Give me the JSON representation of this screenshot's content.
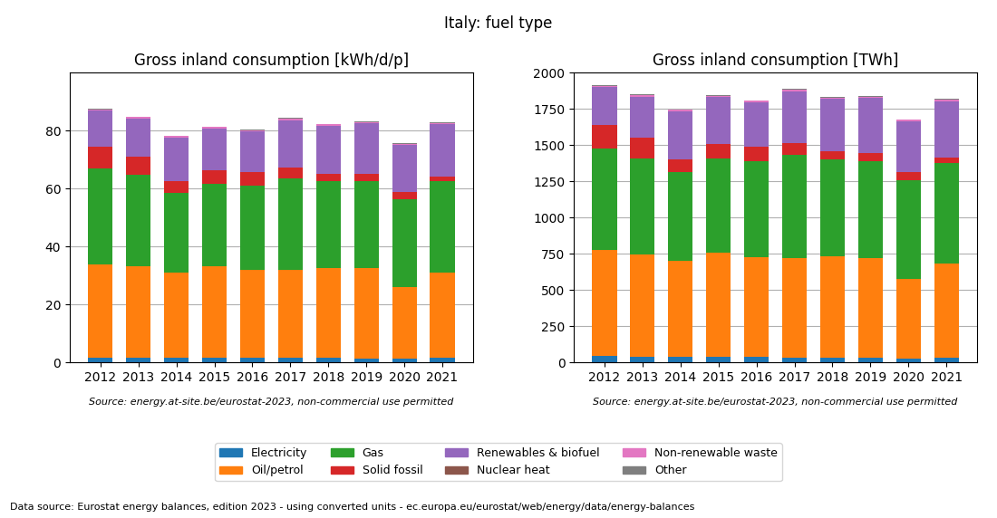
{
  "title": "Italy: fuel type",
  "annotations": [
    "Data source: Eurostat energy balances, edition 2023 - using converted units - ec.europa.eu/eurostat/web/energy/data/energy-balances"
  ],
  "chart_data": [
    {
      "type": "bar",
      "title": "Gross inland consumption [kWh/d/p]",
      "categories": [
        "2012",
        "2013",
        "2014",
        "2015",
        "2016",
        "2017",
        "2018",
        "2019",
        "2020",
        "2021"
      ],
      "series": [
        {
          "name": "Electricity",
          "values": [
            1.8,
            1.6,
            1.6,
            1.7,
            1.6,
            1.6,
            1.6,
            1.5,
            1.4,
            1.6
          ]
        },
        {
          "name": "Oil/petrol",
          "values": [
            32.0,
            31.5,
            29.5,
            31.5,
            30.5,
            30.5,
            31.0,
            31.0,
            24.5,
            29.5
          ]
        },
        {
          "name": "Gas",
          "values": [
            33.0,
            31.5,
            27.5,
            28.5,
            29.0,
            31.5,
            30.0,
            30.0,
            30.5,
            31.5
          ]
        },
        {
          "name": "Solid fossil",
          "values": [
            7.5,
            6.5,
            4.0,
            4.5,
            4.5,
            3.5,
            2.5,
            2.5,
            2.5,
            1.5
          ]
        },
        {
          "name": "Renewables & biofuel",
          "values": [
            12.5,
            13.0,
            15.0,
            14.5,
            14.0,
            16.5,
            16.5,
            17.5,
            16.0,
            18.0
          ]
        },
        {
          "name": "Nuclear heat",
          "values": [
            0.0,
            0.0,
            0.0,
            0.0,
            0.0,
            0.0,
            0.0,
            0.0,
            0.0,
            0.0
          ]
        },
        {
          "name": "Non-renewable waste",
          "values": [
            0.5,
            0.5,
            0.5,
            0.5,
            0.5,
            0.5,
            0.5,
            0.5,
            0.5,
            0.5
          ]
        },
        {
          "name": "Other",
          "values": [
            0.2,
            0.2,
            0.2,
            0.2,
            0.2,
            0.2,
            0.2,
            0.2,
            0.2,
            0.2
          ]
        }
      ],
      "ylim": [
        0,
        100
      ],
      "yticks": [
        0,
        20,
        40,
        60,
        80
      ],
      "stacked": true,
      "grid": true,
      "legend": "lower center",
      "annotations": [
        "Source: energy.at-site.be/eurostat-2023, non-commercial use permitted"
      ]
    },
    {
      "type": "bar",
      "title": "Gross inland consumption [TWh]",
      "categories": [
        "2012",
        "2013",
        "2014",
        "2015",
        "2016",
        "2017",
        "2018",
        "2019",
        "2020",
        "2021"
      ],
      "series": [
        {
          "name": "Electricity",
          "values": [
            44,
            38,
            37,
            40,
            37,
            36,
            36,
            33,
            30,
            36
          ]
        },
        {
          "name": "Oil/petrol",
          "values": [
            730,
            705,
            667,
            720,
            690,
            685,
            695,
            690,
            548,
            648
          ]
        },
        {
          "name": "Gas",
          "values": [
            700,
            667,
            610,
            650,
            660,
            710,
            670,
            665,
            680,
            695
          ]
        },
        {
          "name": "Solid fossil",
          "values": [
            165,
            143,
            88,
            100,
            102,
            80,
            57,
            57,
            55,
            33
          ]
        },
        {
          "name": "Renewables & biofuel",
          "values": [
            260,
            280,
            330,
            320,
            305,
            360,
            360,
            380,
            350,
            390
          ]
        },
        {
          "name": "Nuclear heat",
          "values": [
            0,
            0,
            0,
            0,
            0,
            0,
            0,
            0,
            0,
            0
          ]
        },
        {
          "name": "Non-renewable waste",
          "values": [
            10,
            10,
            10,
            10,
            10,
            10,
            10,
            10,
            10,
            10
          ]
        },
        {
          "name": "Other",
          "values": [
            5,
            5,
            5,
            5,
            5,
            5,
            5,
            5,
            5,
            5
          ]
        }
      ],
      "ylim": [
        0,
        2000
      ],
      "yticks": [
        0,
        250,
        500,
        750,
        1000,
        1250,
        1500,
        1750,
        2000
      ],
      "stacked": true,
      "grid": true,
      "legend": "lower center",
      "annotations": [
        "Source: energy.at-site.be/eurostat-2023, non-commercial use permitted"
      ]
    }
  ]
}
